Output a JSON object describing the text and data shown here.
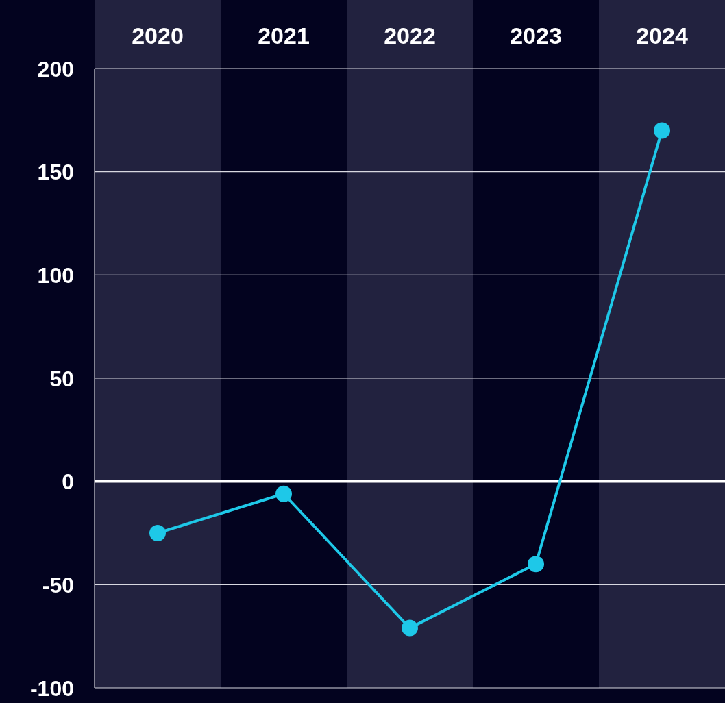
{
  "chart_data": {
    "type": "line",
    "categories": [
      "2020",
      "2021",
      "2022",
      "2023",
      "2024"
    ],
    "series": [
      {
        "color": "#1ec8e8",
        "values": [
          -25,
          -6,
          -71,
          -40,
          170
        ]
      }
    ],
    "ylim": [
      -100,
      200
    ],
    "yticks": [
      -100,
      -50,
      0,
      50,
      100,
      150,
      200
    ],
    "grid": "y",
    "marker": "circle",
    "line_style": "solid",
    "ref_lines": [
      {
        "axis": "y",
        "value": 0,
        "color": "#ffffff"
      }
    ]
  }
}
